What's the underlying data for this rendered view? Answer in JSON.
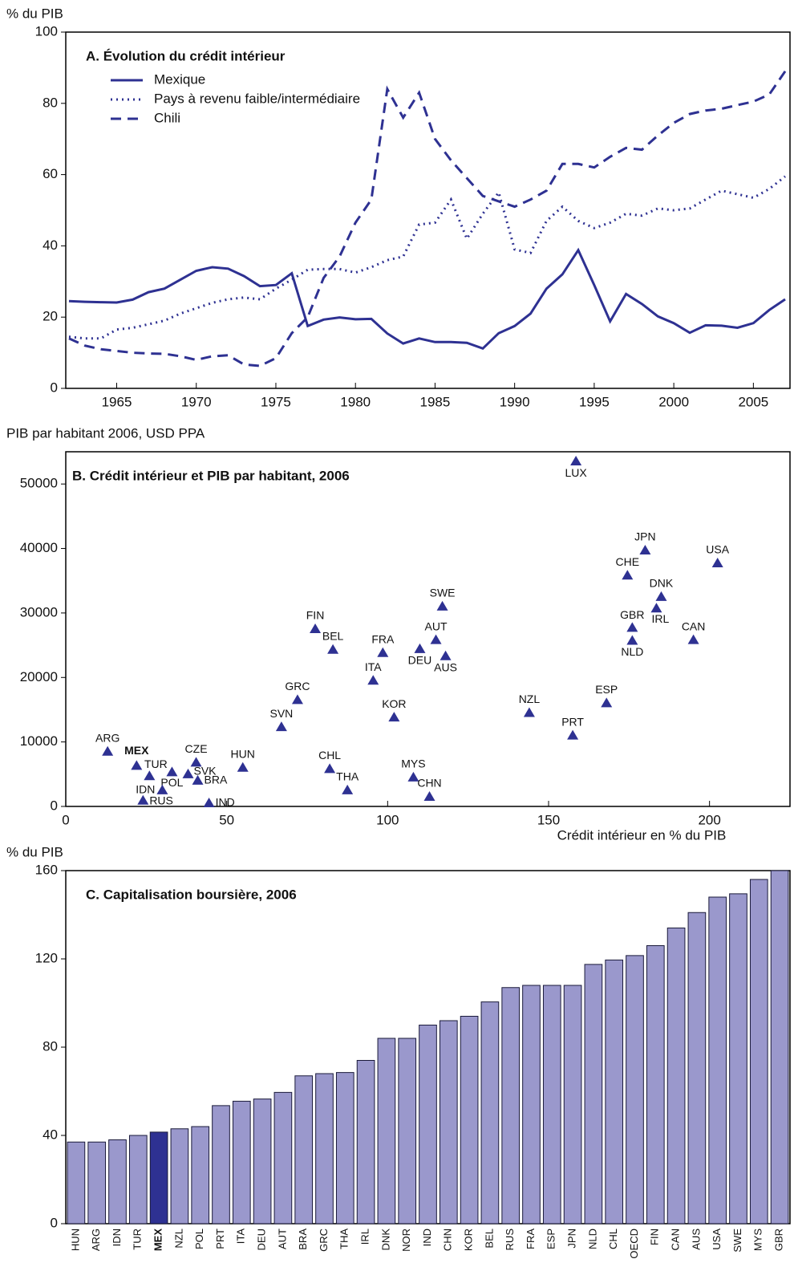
{
  "chart_data": [
    {
      "type": "line",
      "title": "A. Évolution du crédit intérieur",
      "y_label": "% du PIB",
      "x": [
        1962,
        1963,
        1964,
        1965,
        1966,
        1967,
        1968,
        1969,
        1970,
        1971,
        1972,
        1973,
        1974,
        1975,
        1976,
        1977,
        1978,
        1979,
        1980,
        1981,
        1982,
        1983,
        1984,
        1985,
        1986,
        1987,
        1988,
        1989,
        1990,
        1991,
        1992,
        1993,
        1994,
        1995,
        1996,
        1997,
        1998,
        1999,
        2000,
        2001,
        2002,
        2003,
        2004,
        2005,
        2006,
        2007
      ],
      "series": [
        {
          "name": "Mexique",
          "color": "#2e3192",
          "style": "solid",
          "values": [
            24.5,
            24.3,
            24.2,
            24.1,
            24.9,
            27,
            28,
            30.5,
            33,
            34,
            33.6,
            31.5,
            28.7,
            29,
            32.3,
            17.5,
            19.3,
            19.9,
            19.4,
            19.5,
            15.4,
            12.6,
            14,
            13,
            13,
            12.8,
            11.2,
            15.5,
            17.5,
            21,
            28,
            32,
            38.8,
            29,
            18.8,
            26.5,
            23.7,
            20.2,
            18.3,
            15.6,
            17.7,
            17.6,
            17,
            18.3,
            22,
            25
          ]
        },
        {
          "name": "Pays à revenu faible/intermédiaire",
          "color": "#2e3192",
          "style": "dotted",
          "values": [
            14.5,
            14,
            14,
            16.5,
            17,
            18,
            19,
            21,
            22.5,
            24,
            25,
            25.5,
            25,
            28,
            30.5,
            33.3,
            33.5,
            33.5,
            32.5,
            34,
            36,
            37,
            46,
            46.5,
            53,
            42,
            49,
            55,
            39,
            38,
            47,
            51,
            47,
            45,
            46.5,
            49,
            48.5,
            50.5,
            50,
            50.5,
            53,
            55.5,
            54.5,
            53.5,
            56,
            59.5
          ]
        },
        {
          "name": "Chili",
          "color": "#2e3192",
          "style": "dashed",
          "values": [
            14,
            12,
            11,
            10.5,
            10,
            9.8,
            9.7,
            9,
            8,
            9,
            9.3,
            6.7,
            6.3,
            8.5,
            15.5,
            20,
            31,
            37,
            46.5,
            53,
            84,
            76,
            83,
            70,
            64,
            59,
            54,
            52.5,
            51,
            53,
            55.5,
            63,
            63,
            62,
            65,
            67.5,
            67,
            71,
            74.5,
            77,
            78,
            78.5,
            79.5,
            80.5,
            82.5,
            89
          ]
        }
      ],
      "xlim": [
        1961.8,
        2007.3
      ],
      "xticks": [
        1965,
        1970,
        1975,
        1980,
        1985,
        1990,
        1995,
        2000,
        2005
      ],
      "ylim": [
        0,
        100
      ],
      "yticks": [
        0,
        20,
        40,
        60,
        80,
        100
      ]
    },
    {
      "type": "scatter",
      "title": "B. Crédit intérieur et PIB par habitant, 2006",
      "y_label": "PIB par habitant 2006, USD PPA",
      "x_label": "Crédit intérieur en % du PIB",
      "color": "#2e3192",
      "labels": [
        "ARG",
        "MEX",
        "TUR",
        "CZE",
        "POL",
        "SVK",
        "BRA",
        "IDN",
        "RUS",
        "IND",
        "HUN",
        "CHL",
        "THA",
        "SVN",
        "GRC",
        "FIN",
        "BEL",
        "ITA",
        "FRA",
        "KOR",
        "DEU",
        "AUT",
        "AUS",
        "SWE",
        "MYS",
        "CHN",
        "LUX",
        "NZL",
        "PRT",
        "ESP",
        "JPN",
        "CHE",
        "USA",
        "DNK",
        "IRL",
        "GBR",
        "NLD",
        "CAN"
      ],
      "x": [
        13,
        22,
        26,
        40.5,
        33,
        38,
        41,
        30,
        24,
        44.5,
        55,
        82,
        87.5,
        67,
        72,
        77.5,
        83,
        95.5,
        98.5,
        102,
        110,
        115,
        118,
        117,
        108,
        113,
        158.5,
        144,
        157.5,
        168,
        180,
        174.5,
        202.5,
        185,
        183.5,
        176,
        176,
        195
      ],
      "y": [
        8500,
        6300,
        4700,
        6800,
        5300,
        5000,
        4000,
        2500,
        900,
        500,
        6000,
        5800,
        2500,
        12300,
        16500,
        27500,
        24300,
        19500,
        23800,
        13800,
        24400,
        25800,
        23300,
        31000,
        4500,
        1500,
        53500,
        14500,
        11000,
        16000,
        39700,
        35800,
        37700,
        32500,
        30700,
        27700,
        25700,
        25800
      ],
      "xlim": [
        0,
        225
      ],
      "xticks": [
        0,
        50,
        100,
        150,
        200
      ],
      "ylim": [
        0,
        55000
      ],
      "yticks": [
        0,
        10000,
        20000,
        30000,
        40000,
        50000
      ]
    },
    {
      "type": "bar",
      "title": "C. Capitalisation boursière, 2006",
      "y_label": "% du PIB",
      "categories": [
        "HUN",
        "ARG",
        "IDN",
        "TUR",
        "MEX",
        "NZL",
        "POL",
        "PRT",
        "ITA",
        "DEU",
        "AUT",
        "BRA",
        "GRC",
        "THA",
        "IRL",
        "DNK",
        "NOR",
        "IND",
        "CHN",
        "KOR",
        "BEL",
        "RUS",
        "FRA",
        "ESP",
        "JPN",
        "NLD",
        "CHL",
        "OECD",
        "FIN",
        "CAN",
        "AUS",
        "USA",
        "SWE",
        "MYS",
        "GBR"
      ],
      "values": [
        37,
        37,
        38,
        40,
        41.5,
        43,
        44,
        53.5,
        55.5,
        56.5,
        59.5,
        67,
        68,
        68.5,
        74,
        84,
        84,
        90,
        92,
        94,
        100.5,
        107,
        108,
        108,
        108,
        117.5,
        119.5,
        121.5,
        126,
        134,
        141,
        148,
        149.5,
        156,
        160
      ],
      "colors": [
        "#9a98cc",
        "#9a98cc",
        "#9a98cc",
        "#9a98cc",
        "#2e3192",
        "#9a98cc",
        "#9a98cc",
        "#9a98cc",
        "#9a98cc",
        "#9a98cc",
        "#9a98cc",
        "#9a98cc",
        "#9a98cc",
        "#9a98cc",
        "#9a98cc",
        "#9a98cc",
        "#9a98cc",
        "#9a98cc",
        "#9a98cc",
        "#9a98cc",
        "#9a98cc",
        "#9a98cc",
        "#9a98cc",
        "#9a98cc",
        "#9a98cc",
        "#9a98cc",
        "#9a98cc",
        "#9a98cc",
        "#9a98cc",
        "#9a98cc",
        "#9a98cc",
        "#9a98cc",
        "#9a98cc",
        "#9a98cc",
        "#9a98cc"
      ],
      "ylim": [
        0,
        160
      ],
      "yticks": [
        0,
        40,
        80,
        120,
        160
      ]
    }
  ]
}
